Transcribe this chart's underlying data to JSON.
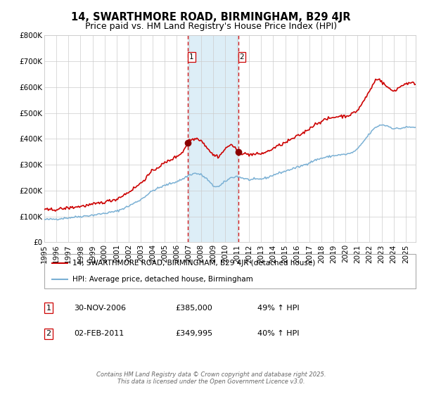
{
  "title": "14, SWARTHMORE ROAD, BIRMINGHAM, B29 4JR",
  "subtitle": "Price paid vs. HM Land Registry's House Price Index (HPI)",
  "ylim": [
    0,
    800000
  ],
  "yticks": [
    0,
    100000,
    200000,
    300000,
    400000,
    500000,
    600000,
    700000,
    800000
  ],
  "ytick_labels": [
    "£0",
    "£100K",
    "£200K",
    "£300K",
    "£400K",
    "£500K",
    "£600K",
    "£700K",
    "£800K"
  ],
  "xlim_start": 1995.0,
  "xlim_end": 2025.83,
  "xtick_years": [
    1995,
    1996,
    1997,
    1998,
    1999,
    2000,
    2001,
    2002,
    2003,
    2004,
    2005,
    2006,
    2007,
    2008,
    2009,
    2010,
    2011,
    2012,
    2013,
    2014,
    2015,
    2016,
    2017,
    2018,
    2019,
    2020,
    2021,
    2022,
    2023,
    2024,
    2025
  ],
  "property_color": "#cc0000",
  "hpi_color": "#7ab0d4",
  "sale1_x": 2006.92,
  "sale1_y": 385000,
  "sale2_x": 2011.09,
  "sale2_y": 349995,
  "shade_color": "#ddeef7",
  "vline_color": "#cc0000",
  "marker_color": "#8B0000",
  "legend_property": "14, SWARTHMORE ROAD, BIRMINGHAM, B29 4JR (detached house)",
  "legend_hpi": "HPI: Average price, detached house, Birmingham",
  "table_rows": [
    {
      "num": "1",
      "date": "30-NOV-2006",
      "price": "£385,000",
      "hpi": "49% ↑ HPI"
    },
    {
      "num": "2",
      "date": "02-FEB-2011",
      "price": "£349,995",
      "hpi": "40% ↑ HPI"
    }
  ],
  "footer": "Contains HM Land Registry data © Crown copyright and database right 2025.\nThis data is licensed under the Open Government Licence v3.0.",
  "background_color": "#ffffff",
  "grid_color": "#cccccc",
  "title_fontsize": 10.5,
  "subtitle_fontsize": 9,
  "tick_fontsize": 7.5,
  "legend_fontsize": 7.5,
  "table_fontsize": 8,
  "footer_fontsize": 6
}
